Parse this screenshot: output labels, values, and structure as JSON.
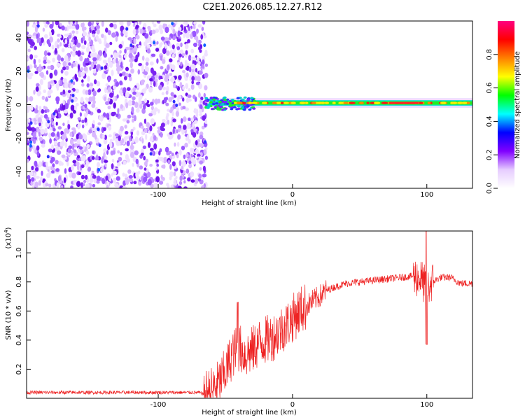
{
  "title": "C2E1.2026.085.12.27.R12",
  "spectrogram": {
    "type": "heatmap",
    "xlabel": "Height of straight line (km)",
    "ylabel": "Frequency (Hz)",
    "xlim": [
      -198,
      134
    ],
    "ylim": [
      -50,
      50
    ],
    "x_ticks": [
      -100,
      0,
      100
    ],
    "y_ticks": [
      -40,
      -20,
      0,
      20,
      40
    ],
    "noise_region_end_km": -64,
    "signal_frequency_hz": 1,
    "signal_start_km": -65,
    "colorbar": {
      "label": "Normalized spectral amplitude",
      "range": [
        0,
        1
      ],
      "ticks": [
        "0.0",
        "0.2",
        "0.4",
        "0.6",
        "0.8"
      ],
      "colors": [
        "#ffffff",
        "#e6ccff",
        "#8000ff",
        "#0000ff",
        "#00ffff",
        "#00ff00",
        "#ffff00",
        "#ff8000",
        "#ff0000",
        "#ff0080"
      ]
    }
  },
  "snr": {
    "type": "line",
    "xlabel": "Height of straight line (km)",
    "ylabel": "SNR (10 * v/v)",
    "multiplier_label": "(x10",
    "multiplier_exp": "4",
    "multiplier_close": ")",
    "xlim": [
      -198,
      134
    ],
    "ylim": [
      0,
      1.15
    ],
    "x_ticks": [
      -100,
      0,
      100
    ],
    "y_ticks": [
      "0.2",
      "0.4",
      "0.6",
      "0.8",
      "1.0"
    ],
    "color": "#ee2222",
    "profile": [
      [
        -198,
        0.04
      ],
      [
        -70,
        0.04
      ],
      [
        -66,
        0.03
      ],
      [
        -60,
        0.05
      ],
      [
        -55,
        0.1
      ],
      [
        -50,
        0.18
      ],
      [
        -45,
        0.3
      ],
      [
        -40,
        0.35
      ],
      [
        -35,
        0.3
      ],
      [
        -30,
        0.33
      ],
      [
        -25,
        0.38
      ],
      [
        -20,
        0.4
      ],
      [
        -15,
        0.42
      ],
      [
        -10,
        0.46
      ],
      [
        -5,
        0.5
      ],
      [
        0,
        0.55
      ],
      [
        5,
        0.6
      ],
      [
        10,
        0.63
      ],
      [
        15,
        0.67
      ],
      [
        20,
        0.7
      ],
      [
        25,
        0.74
      ],
      [
        30,
        0.76
      ],
      [
        40,
        0.79
      ],
      [
        50,
        0.8
      ],
      [
        60,
        0.81
      ],
      [
        70,
        0.82
      ],
      [
        80,
        0.83
      ],
      [
        90,
        0.84
      ],
      [
        96,
        0.82
      ],
      [
        100,
        0.75
      ],
      [
        104,
        0.8
      ],
      [
        110,
        0.83
      ],
      [
        118,
        0.83
      ],
      [
        125,
        0.79
      ],
      [
        134,
        0.79
      ]
    ]
  }
}
